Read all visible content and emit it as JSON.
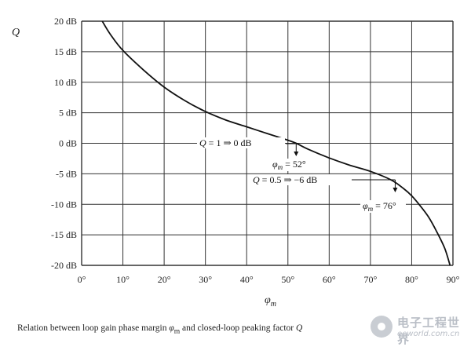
{
  "chart_data": {
    "type": "line",
    "xlabel": "φm",
    "ylabel": "Q",
    "x_ticks": [
      "0°",
      "10°",
      "20°",
      "30°",
      "40°",
      "50°",
      "60°",
      "70°",
      "80°",
      "90°"
    ],
    "y_ticks": [
      "20 dB",
      "15 dB",
      "10 dB",
      "5 dB",
      "0 dB",
      "-5 dB",
      "-10 dB",
      "-15 dB",
      "-20 dB"
    ],
    "xlim": [
      0,
      90
    ],
    "ylim": [
      -20,
      20
    ],
    "grid": true,
    "series": [
      {
        "x": [
          5,
          7,
          10,
          15,
          20,
          25,
          30,
          35,
          40,
          45,
          50,
          52,
          55,
          60,
          65,
          70,
          75,
          78,
          80,
          82,
          84,
          86,
          88,
          89.3
        ],
        "y": [
          20,
          17.8,
          15.2,
          12.0,
          9.2,
          7.0,
          5.2,
          3.8,
          2.7,
          1.6,
          0.5,
          0,
          -1.0,
          -2.4,
          -3.6,
          -4.6,
          -6.0,
          -7.4,
          -8.6,
          -10.2,
          -12.0,
          -14.4,
          -17.2,
          -20
        ]
      }
    ],
    "annotations": [
      {
        "label_parts": [
          "Q",
          " = 1 ⇒ 0 dB"
        ],
        "result_parts": [
          "φ",
          "m",
          " = 52°"
        ],
        "x": 52,
        "y": 0
      },
      {
        "label_parts": [
          "Q",
          " = 0.5 ⇒ −6 dB"
        ],
        "result_parts": [
          "φ",
          "m",
          " = 76°"
        ],
        "x": 76,
        "y": -6
      }
    ]
  },
  "caption_parts": [
    "Relation between loop gain phase margin ",
    "φ",
    "m",
    " and closed-loop peaking factor ",
    "Q"
  ],
  "watermark": {
    "logo_icon": "circle-logo-icon",
    "text": "电子工程世界",
    "url": "eeworld.com.cn"
  }
}
